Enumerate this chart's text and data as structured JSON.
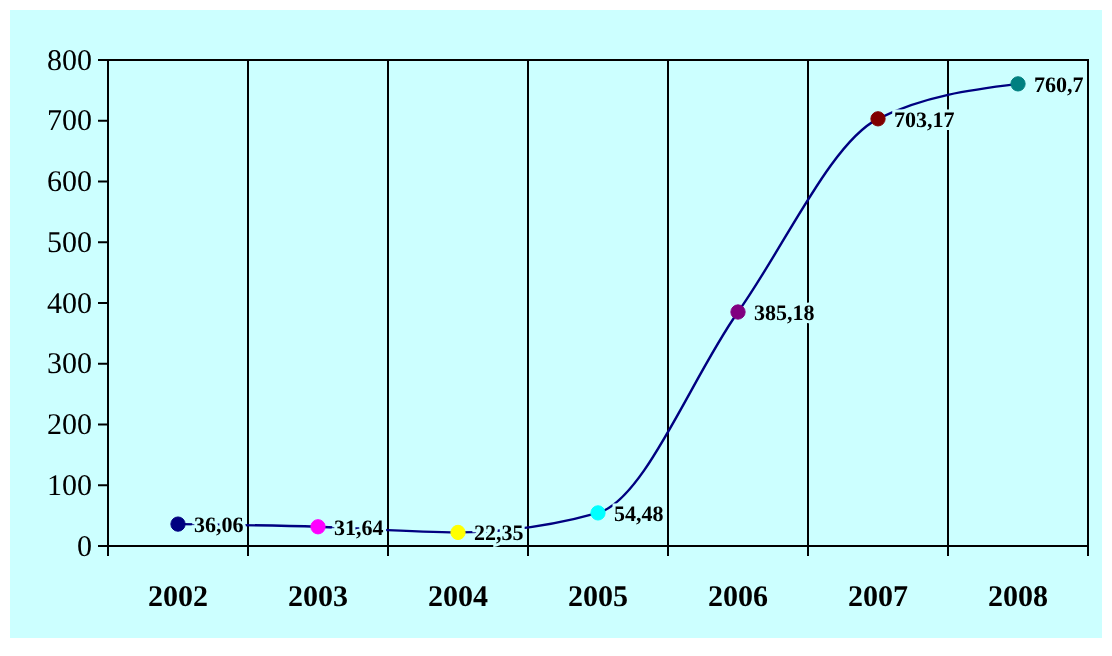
{
  "chart_data": {
    "type": "line",
    "categories": [
      "2002",
      "2003",
      "2004",
      "2005",
      "2006",
      "2007",
      "2008"
    ],
    "ylim": [
      0,
      800
    ],
    "yticks": [
      0,
      100,
      200,
      300,
      400,
      500,
      600,
      700,
      800
    ],
    "grid": "x",
    "marker": "circle",
    "series": [
      {
        "color": "#000080",
        "colors": [
          "#000080",
          "#ff00ff",
          "#ffff00",
          "#00ffff",
          "#800080",
          "#800000",
          "#008080"
        ],
        "values": [
          36.06,
          31.64,
          22.35,
          54.48,
          385.18,
          703.17,
          760.7
        ],
        "value_labels": [
          "36,06",
          "31,64",
          "22,35",
          "54,48",
          "385,18",
          "703,17",
          "760,7"
        ]
      }
    ]
  }
}
